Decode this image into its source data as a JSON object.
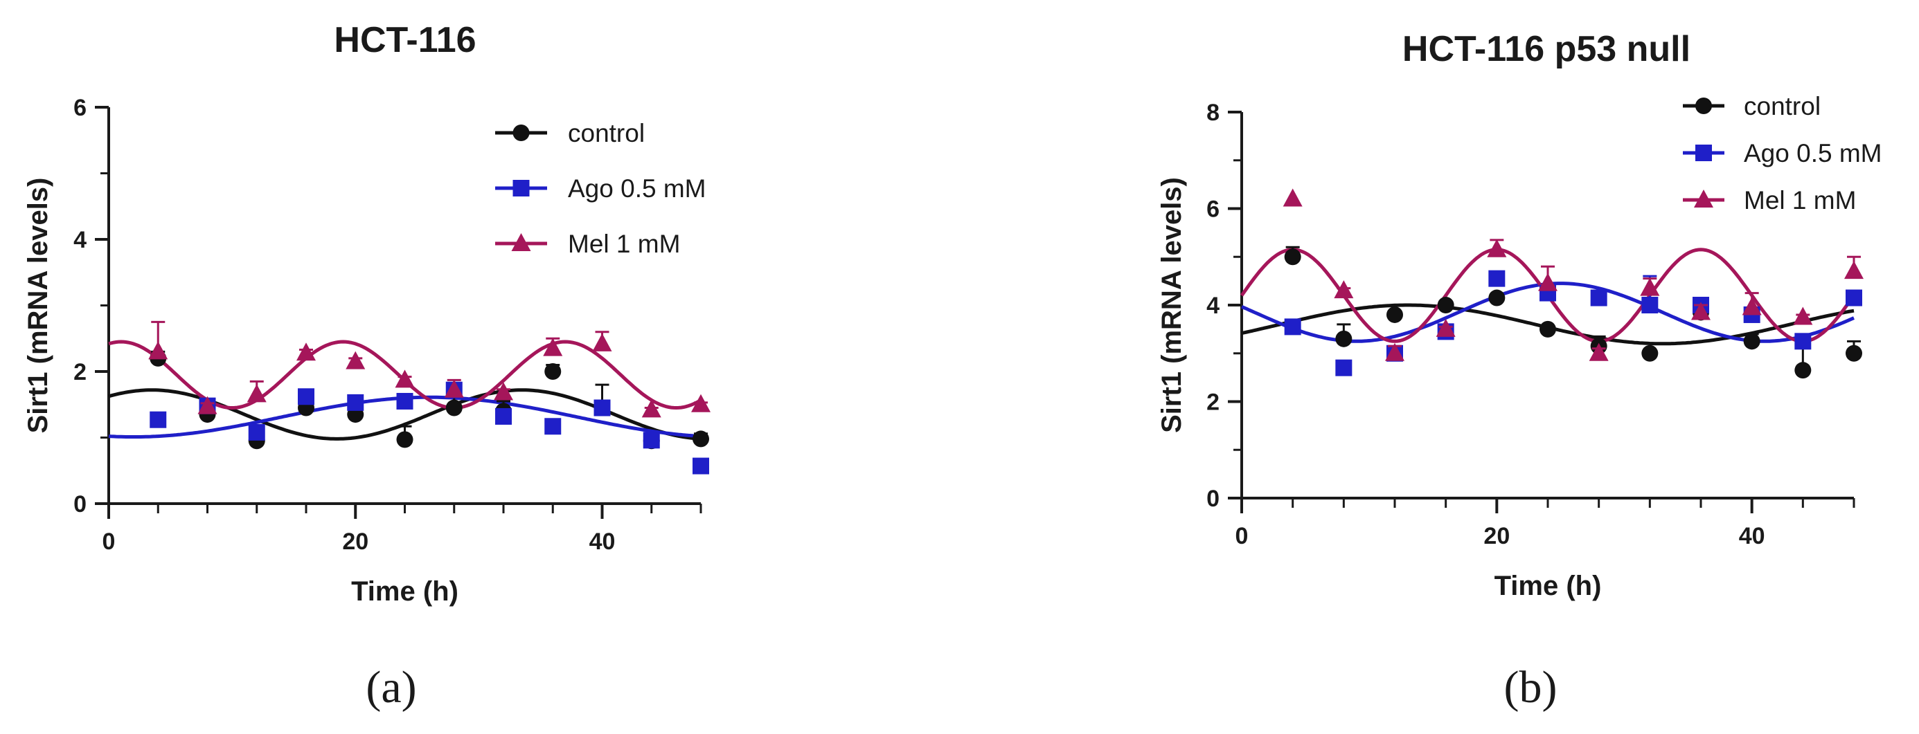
{
  "chart_data": [
    {
      "type": "scatter",
      "title": "HCT-116",
      "xlabel": "Time (h)",
      "ylabel": "Sirt1 (mRNA levels)",
      "xlim": [
        0,
        48
      ],
      "ylim": [
        0,
        6
      ],
      "xticks": [
        0,
        20,
        40
      ],
      "yticks": [
        0,
        2,
        4,
        6
      ],
      "caption": "(a)",
      "legend_position": "top-right",
      "series": [
        {
          "name": "control",
          "color": "#111111",
          "marker": "circle",
          "x": [
            4,
            8,
            12,
            16,
            20,
            24,
            28,
            32,
            36,
            40,
            44,
            48
          ],
          "y": [
            2.2,
            1.35,
            0.95,
            1.45,
            1.35,
            0.97,
            1.45,
            1.4,
            2.0,
            1.45,
            0.95,
            0.98
          ],
          "err": [
            0.1,
            0.05,
            0.05,
            0.15,
            0.05,
            0.2,
            0.3,
            0.15,
            0.1,
            0.35,
            0.03,
            0.08
          ],
          "fit": {
            "mean": 1.35,
            "amp": 0.37,
            "period": 30,
            "phase_peak": 3.5
          }
        },
        {
          "name": "Ago 0.5 mM",
          "color": "#1f1fc8",
          "marker": "square",
          "x": [
            4,
            8,
            12,
            16,
            20,
            24,
            28,
            32,
            36,
            40,
            44,
            48
          ],
          "y": [
            1.27,
            1.48,
            1.08,
            1.62,
            1.53,
            1.55,
            1.72,
            1.32,
            1.17,
            1.45,
            0.96,
            0.57
          ],
          "err": [
            0,
            0,
            0,
            0,
            0,
            0,
            0,
            0,
            0,
            0,
            0,
            0
          ],
          "fit": {
            "mean": 1.31,
            "amp": 0.3,
            "period": 48,
            "phase_peak": 26
          }
        },
        {
          "name": "Mel 1 mM",
          "color": "#a5165a",
          "marker": "triangle",
          "x": [
            4,
            8,
            12,
            16,
            20,
            24,
            28,
            32,
            36,
            40,
            44,
            48
          ],
          "y": [
            2.3,
            1.47,
            1.65,
            2.28,
            2.15,
            1.87,
            1.72,
            1.68,
            2.35,
            2.42,
            1.42,
            1.5
          ],
          "err": [
            0.45,
            0.05,
            0.2,
            0.05,
            0.05,
            0.05,
            0.15,
            0.05,
            0.15,
            0.18,
            0.03,
            0.03
          ],
          "fit": {
            "mean": 1.95,
            "amp": 0.5,
            "period": 18,
            "phase_peak": 19
          }
        }
      ]
    },
    {
      "type": "scatter",
      "title": "HCT-116 p53 null",
      "xlabel": "Time (h)",
      "ylabel": "Sirt1 (mRNA levels)",
      "xlim": [
        0,
        48
      ],
      "ylim": [
        0,
        8
      ],
      "xticks": [
        0,
        20,
        40
      ],
      "yticks": [
        0,
        2,
        4,
        6,
        8
      ],
      "caption": "(b)",
      "legend_position": "top-right",
      "series": [
        {
          "name": "control",
          "color": "#111111",
          "marker": "circle",
          "x": [
            4,
            8,
            12,
            16,
            20,
            24,
            28,
            32,
            36,
            40,
            44,
            48
          ],
          "y": [
            5.0,
            3.3,
            3.8,
            4.0,
            4.15,
            3.5,
            3.15,
            3.0,
            3.85,
            3.25,
            2.65,
            3.0
          ],
          "err": [
            0.2,
            0.3,
            0.05,
            0.05,
            0.05,
            0.05,
            0.2,
            0.05,
            0.2,
            0.15,
            0.6,
            0.25
          ],
          "fit": {
            "mean": 3.6,
            "amp": 0.4,
            "period": 40,
            "phase_peak": 13
          }
        },
        {
          "name": "Ago 0.5 mM",
          "color": "#1f1fc8",
          "marker": "square",
          "x": [
            4,
            8,
            12,
            16,
            20,
            24,
            28,
            32,
            36,
            40,
            44,
            48
          ],
          "y": [
            3.55,
            2.7,
            3.0,
            3.45,
            4.55,
            4.25,
            4.15,
            4.0,
            4.0,
            3.8,
            3.25,
            4.15
          ],
          "err": [
            0,
            0,
            0,
            0,
            0,
            0,
            0,
            0.6,
            0,
            0,
            0,
            0
          ],
          "fit": {
            "mean": 3.85,
            "amp": 0.6,
            "period": 32,
            "phase_peak": 25
          }
        },
        {
          "name": "Mel 1 mM",
          "color": "#a5165a",
          "marker": "triangle",
          "x": [
            4,
            8,
            12,
            16,
            20,
            24,
            28,
            32,
            36,
            40,
            44,
            48
          ],
          "y": [
            6.2,
            4.3,
            3.0,
            3.5,
            5.15,
            4.45,
            3.0,
            4.35,
            3.85,
            3.95,
            3.75,
            4.7
          ],
          "err": [
            0,
            0.05,
            0.15,
            0.05,
            0.2,
            0.35,
            0.1,
            0.2,
            0.15,
            0.3,
            0.05,
            0.3
          ],
          "fit": {
            "mean": 4.2,
            "amp": 0.95,
            "period": 16,
            "phase_peak": 4
          }
        }
      ]
    }
  ]
}
